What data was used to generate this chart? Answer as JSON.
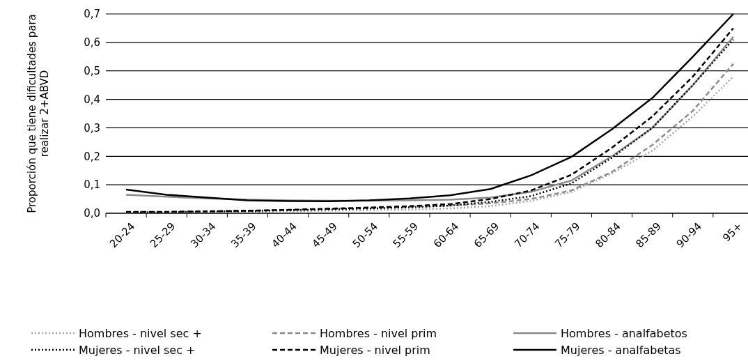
{
  "chart_data": {
    "type": "line",
    "ylabel": "Proporción que tiene dificultades para realizar 2+ABVD",
    "categories": [
      "20-24",
      "25-29",
      "30-34",
      "35-39",
      "40-44",
      "45-49",
      "50-54",
      "55-59",
      "60-64",
      "65-69",
      "70-74",
      "75-79",
      "80-84",
      "85-89",
      "90-94",
      "95+"
    ],
    "ylim": [
      0,
      0.7
    ],
    "yticks": [
      {
        "value": 0,
        "label": "0,0"
      },
      {
        "value": 0.1,
        "label": "0,1"
      },
      {
        "value": 0.2,
        "label": "0,2"
      },
      {
        "value": 0.3,
        "label": "0,3"
      },
      {
        "value": 0.4,
        "label": "0,4"
      },
      {
        "value": 0.5,
        "label": "0,5"
      },
      {
        "value": 0.6,
        "label": "0,6"
      },
      {
        "value": 0.7,
        "label": "0,7"
      }
    ],
    "grid": "y",
    "legend": "bottom",
    "series": [
      {
        "name": "Hombres - nivel sec +",
        "color": "#a6a6a6",
        "line_style": "dotted",
        "values": [
          0.002,
          0.003,
          0.004,
          0.005,
          0.007,
          0.009,
          0.011,
          0.013,
          0.017,
          0.025,
          0.043,
          0.075,
          0.14,
          0.22,
          0.34,
          0.48
        ]
      },
      {
        "name": "Hombres - nivel prim",
        "color": "#8c8c8c",
        "line_style": "dashed",
        "values": [
          0.003,
          0.004,
          0.006,
          0.008,
          0.011,
          0.015,
          0.018,
          0.022,
          0.027,
          0.035,
          0.05,
          0.08,
          0.145,
          0.24,
          0.36,
          0.525
        ]
      },
      {
        "name": "Hombres - analfabetos",
        "color": "#8c8c8c",
        "line_style": "solid",
        "values": [
          0.065,
          0.058,
          0.052,
          0.048,
          0.045,
          0.044,
          0.044,
          0.045,
          0.048,
          0.055,
          0.075,
          0.115,
          0.2,
          0.3,
          0.45,
          0.62
        ]
      },
      {
        "name": "Mujeres - nivel sec +",
        "color": "#000000",
        "line_style": "dotted",
        "values": [
          0.003,
          0.004,
          0.006,
          0.008,
          0.011,
          0.014,
          0.017,
          0.021,
          0.027,
          0.04,
          0.06,
          0.105,
          0.195,
          0.3,
          0.45,
          0.61
        ]
      },
      {
        "name": "Mujeres - nivel prim",
        "color": "#000000",
        "line_style": "dashed",
        "values": [
          0.005,
          0.005,
          0.007,
          0.009,
          0.012,
          0.016,
          0.02,
          0.025,
          0.032,
          0.05,
          0.08,
          0.135,
          0.23,
          0.34,
          0.48,
          0.65
        ]
      },
      {
        "name": "Mujeres - analfabetas",
        "color": "#000000",
        "line_style": "solid",
        "values": [
          0.083,
          0.065,
          0.055,
          0.045,
          0.043,
          0.042,
          0.045,
          0.052,
          0.063,
          0.085,
          0.133,
          0.198,
          0.295,
          0.405,
          0.55,
          0.7
        ]
      }
    ]
  }
}
